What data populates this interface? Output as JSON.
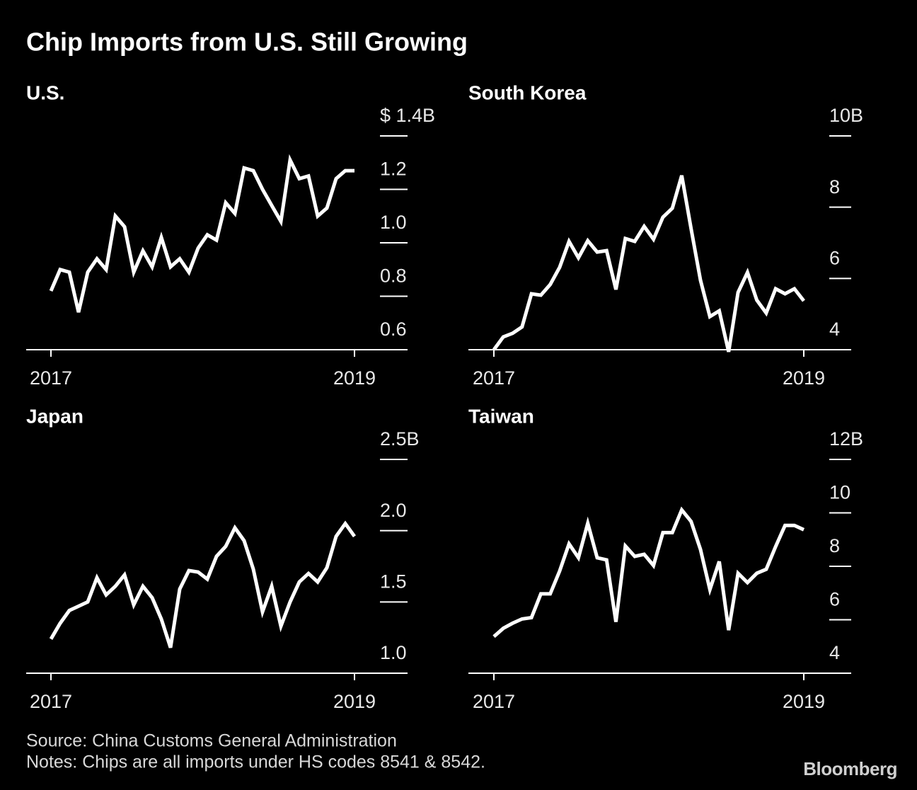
{
  "title": "Chip Imports from U.S. Still Growing",
  "source": "Source: China Customs General Administration",
  "notes": "Notes: Chips are all imports under HS codes 8541 & 8542.",
  "brand": "Bloomberg",
  "chart_data": [
    {
      "type": "line",
      "title": "U.S.",
      "color": "#ffffff",
      "xlim": [
        2017,
        2019
      ],
      "xticks": [
        2017,
        2019
      ],
      "ylim": [
        0.6,
        1.4
      ],
      "yticks": [
        0.6,
        0.8,
        {
          "value": 1,
          "label": "1.0"
        },
        1.2,
        {
          "value": 1.4,
          "label": "$ 1.4B"
        }
      ],
      "values": [
        0.82,
        0.9,
        0.89,
        0.74,
        0.89,
        0.94,
        0.9,
        1.1,
        1.06,
        0.89,
        0.97,
        0.91,
        1.02,
        0.91,
        0.94,
        0.89,
        0.98,
        1.03,
        1.01,
        1.15,
        1.11,
        1.28,
        1.27,
        1.2,
        1.14,
        1.08,
        1.31,
        1.24,
        1.25,
        1.1,
        1.13,
        1.24,
        1.27,
        1.27
      ]
    },
    {
      "type": "line",
      "title": "South Korea",
      "color": "#ffffff",
      "xlim": [
        2017,
        2019
      ],
      "xticks": [
        2017,
        2019
      ],
      "ylim": [
        4,
        10
      ],
      "yticks": [
        4,
        6,
        8,
        {
          "value": 10,
          "label": "10B"
        }
      ],
      "values": [
        4.0,
        4.36,
        4.46,
        4.64,
        5.57,
        5.53,
        5.83,
        6.31,
        7.04,
        6.58,
        7.06,
        6.74,
        6.78,
        5.69,
        7.12,
        7.04,
        7.46,
        7.1,
        7.72,
        7.97,
        8.89,
        7.4,
        5.95,
        4.93,
        5.09,
        3.94,
        5.61,
        6.17,
        5.39,
        5.03,
        5.71,
        5.57,
        5.71,
        5.37
      ]
    },
    {
      "type": "line",
      "title": "Japan",
      "color": "#ffffff",
      "xlim": [
        2017,
        2019
      ],
      "xticks": [
        2017,
        2019
      ],
      "ylim": [
        1,
        2.5
      ],
      "yticks": [
        {
          "value": 1,
          "label": "1.0"
        },
        1.5,
        {
          "value": 2,
          "label": "2.0"
        },
        {
          "value": 2.5,
          "label": "2.5B"
        }
      ],
      "values": [
        1.24,
        1.35,
        1.44,
        1.47,
        1.5,
        1.67,
        1.55,
        1.61,
        1.69,
        1.48,
        1.61,
        1.53,
        1.38,
        1.18,
        1.59,
        1.72,
        1.71,
        1.66,
        1.82,
        1.89,
        2.02,
        1.93,
        1.73,
        1.43,
        1.61,
        1.33,
        1.5,
        1.64,
        1.7,
        1.64,
        1.74,
        1.96,
        2.05,
        1.96
      ]
    },
    {
      "type": "line",
      "title": "Taiwan",
      "color": "#ffffff",
      "xlim": [
        2017,
        2019
      ],
      "xticks": [
        2017,
        2019
      ],
      "ylim": [
        4,
        12
      ],
      "yticks": [
        4,
        6,
        8,
        10,
        {
          "value": 12,
          "label": "12B"
        }
      ],
      "values": [
        5.37,
        5.68,
        5.87,
        6.03,
        6.08,
        6.97,
        6.97,
        7.82,
        8.84,
        8.32,
        9.61,
        8.32,
        8.24,
        5.92,
        8.76,
        8.37,
        8.45,
        8.03,
        9.26,
        9.26,
        10.11,
        9.68,
        8.63,
        7.13,
        8.18,
        5.61,
        7.74,
        7.39,
        7.74,
        7.89,
        8.74,
        9.53,
        9.53,
        9.37
      ]
    }
  ]
}
